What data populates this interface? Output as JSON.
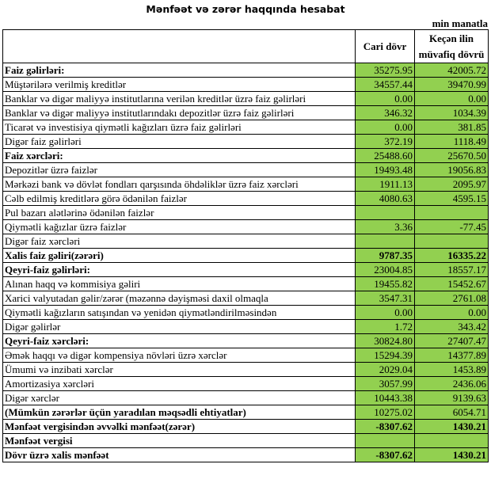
{
  "title": "Mənfəət və zərər haqqında hesabat",
  "unit": "min manatla",
  "columns": [
    "Cari dövr",
    "Keçən ilin müvafiq dövrü"
  ],
  "colors": {
    "value_cell": "#92d050"
  },
  "rows": [
    {
      "label": "Faiz gəlirləri:",
      "current": "35275.95",
      "previous": "42005.72",
      "bold": true
    },
    {
      "label": "Müştərilərə verilmiş kreditlər",
      "current": "34557.44",
      "previous": "39470.99"
    },
    {
      "label": "Banklar və digər maliyyə institutlarına verilən kreditlər üzrə faiz gəlirləri",
      "current": "0.00",
      "previous": "0.00"
    },
    {
      "label": "Banklar və digər maliyyə institutlarındakı depozitlər üzrə faiz gəlirləri",
      "current": "346.32",
      "previous": "1034.39"
    },
    {
      "label": "Ticarət və investisiya qiymətli kağızları üzrə faiz gəlirləri",
      "current": "0.00",
      "previous": "381.85"
    },
    {
      "label": "Digər faiz gəlirləri",
      "current": "372.19",
      "previous": "1118.49"
    },
    {
      "label": "Faiz xərcləri:",
      "current": "25488.60",
      "previous": "25670.50",
      "bold": true
    },
    {
      "label": "Depozitlər üzrə faizlər",
      "current": "19493.48",
      "previous": "19056.83"
    },
    {
      "label": "Mərkəzi bank və dövlət fondları qarşısında öhdəliklər üzrə faiz xərcləri",
      "current": "1911.13",
      "previous": "2095.97"
    },
    {
      "label": "Cəlb edilmiş kreditlərə görə ödənilən faizlər",
      "current": "4080.63",
      "previous": "4595.15"
    },
    {
      "label": "Pul bazarı alətlərinə ödənilən faizlər",
      "current": "",
      "previous": ""
    },
    {
      "label": "Qiymətli kağızlar üzrə faizlər",
      "current": "3.36",
      "previous": "-77.45"
    },
    {
      "label": "Digər faiz xərcləri",
      "current": "",
      "previous": ""
    },
    {
      "label": "Xalis faiz gəliri(zərəri)",
      "current": "9787.35",
      "previous": "16335.22",
      "bold": true,
      "bold_values": true
    },
    {
      "label": "Qeyri-faiz gəlirləri:",
      "current": "23004.85",
      "previous": "18557.17",
      "bold": true
    },
    {
      "label": "Alınan haqq və kommisiya gəliri",
      "current": "19455.82",
      "previous": "15452.67"
    },
    {
      "label": "Xarici valyutadan gəlir/zərər (məzənnə dəyişməsi daxil olmaqla",
      "current": "3547.31",
      "previous": "2761.08"
    },
    {
      "label": "Qiymətli kağızların satışından və yenidən qiymətləndirilməsindən",
      "current": "0.00",
      "previous": "0.00"
    },
    {
      "label": "Digər gəlirlər",
      "current": "1.72",
      "previous": "343.42"
    },
    {
      "label": "Qeyri-faiz xərcləri:",
      "current": "30824.80",
      "previous": "27407.47",
      "bold": true
    },
    {
      "label": "Əmək haqqı və digər kompensiya növləri üzrə xərclər",
      "current": "15294.39",
      "previous": "14377.89"
    },
    {
      "label": "Ümumi və inzibati xərclər",
      "current": "2029.04",
      "previous": "1453.89"
    },
    {
      "label": "Amortizasiya xərcləri",
      "current": "3057.99",
      "previous": "2436.06"
    },
    {
      "label": "Digər xərclər",
      "current": "10443.38",
      "previous": "9139.63"
    },
    {
      "label": "(Mümkün zərərlər üçün yaradılan məqsədli ehtiyatlar)",
      "current": "10275.02",
      "previous": "6054.71",
      "bold": true
    },
    {
      "label": "Mənfəət vergisindən əvvəlki mənfəət(zərər)",
      "current": "-8307.62",
      "previous": "1430.21",
      "bold": true,
      "bold_values": true
    },
    {
      "label": "Mənfəət vergisi",
      "current": "",
      "previous": "",
      "bold": true
    },
    {
      "label": "Dövr üzrə xalis mənfəət",
      "current": "-8307.62",
      "previous": "1430.21",
      "bold": true,
      "bold_values": true
    }
  ]
}
